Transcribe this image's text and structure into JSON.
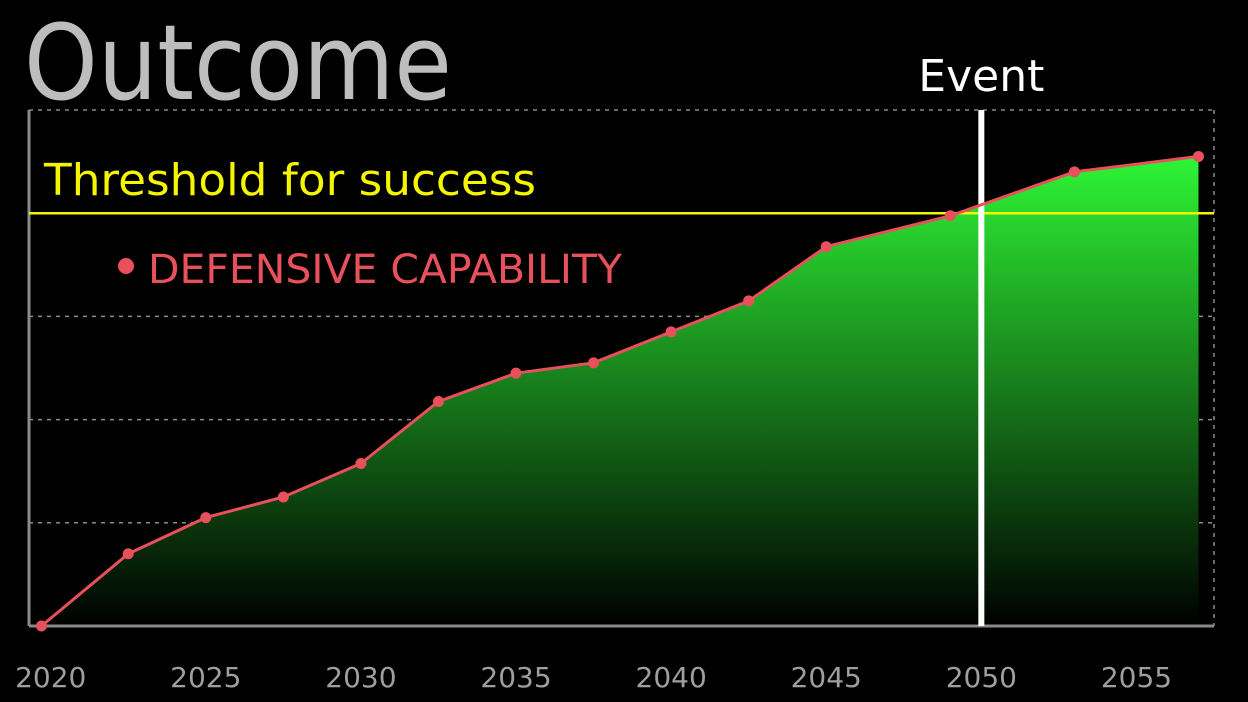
{
  "colors": {
    "background": "#000000",
    "series": "#e8505b",
    "area_top": "#2ef535",
    "area_bottom": "#000000",
    "threshold": "#f5f500",
    "event_line": "#ffffff",
    "grid": "#8a8a8a",
    "axis": "#8a8a8a",
    "title": "#bdbdbd",
    "tick": "#9e9e9e"
  },
  "chart_data": {
    "type": "area",
    "title": "Outcome",
    "xlabel": "",
    "ylabel": "",
    "xlim": [
      2019.3,
      2057.5
    ],
    "ylim": [
      0,
      100
    ],
    "x_ticks": [
      2020,
      2025,
      2030,
      2035,
      2040,
      2045,
      2050,
      2055
    ],
    "y_grid": [
      20,
      40,
      60,
      80,
      100
    ],
    "grid": "dashed horizontal",
    "legend_placement": "top-left",
    "series": [
      {
        "name": "DEFENSIVE CAPABILITY",
        "x": [
          2019.7,
          2022.5,
          2025.0,
          2027.5,
          2030.0,
          2032.5,
          2035.0,
          2037.5,
          2040.0,
          2042.5,
          2045.0,
          2049.0,
          2053.0,
          2057.0
        ],
        "y": [
          0,
          14,
          21,
          25,
          31.5,
          43.5,
          49,
          51,
          57,
          63,
          73.5,
          79.5,
          88,
          91
        ]
      }
    ],
    "threshold": {
      "label": "Threshold for success",
      "value": 80
    },
    "event": {
      "label": "Event",
      "x": 2050.0
    }
  }
}
